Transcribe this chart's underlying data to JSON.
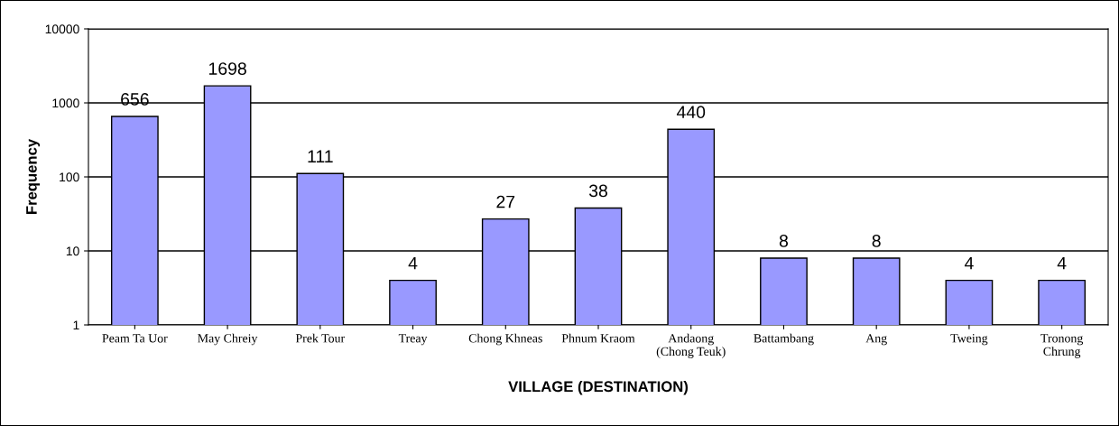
{
  "chart_data": {
    "type": "bar",
    "xlabel": "VILLAGE (DESTINATION)",
    "ylabel": "Frequency",
    "categories": [
      "Peam Ta Uor",
      "May Chreiy",
      "Prek Tour",
      "Treay",
      "Chong Khneas",
      "Phnum Kraom",
      "Andaong\n(Chong Teuk)",
      "Battambang",
      "Ang",
      "Tweing",
      "Tronong\nChrung"
    ],
    "values": [
      656,
      1698,
      111,
      4,
      27,
      38,
      440,
      8,
      8,
      4,
      4
    ],
    "color": "#9999ff",
    "log": "y",
    "ylim": [
      1,
      10000
    ],
    "yticks": [
      1,
      10,
      100,
      1000,
      10000
    ],
    "grid": "y",
    "data_labels": true
  }
}
